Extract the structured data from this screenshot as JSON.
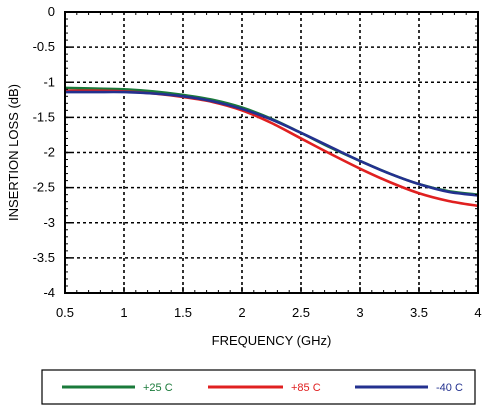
{
  "chart_data": {
    "type": "line",
    "title": "",
    "xlabel": "FREQUENCY (GHz)",
    "ylabel": "INSERTION LOSS (dB)",
    "xlim": [
      0.5,
      4
    ],
    "ylim": [
      -4,
      0
    ],
    "x_ticks": [
      0.5,
      1,
      1.5,
      2,
      2.5,
      3,
      3.5,
      4
    ],
    "x_tick_labels": [
      "0.5",
      "1",
      "1.5",
      "2",
      "2.5",
      "3",
      "3.5",
      "4"
    ],
    "y_ticks": [
      0,
      -0.5,
      -1,
      -1.5,
      -2,
      -2.5,
      -3,
      -3.5,
      -4
    ],
    "y_tick_labels": [
      "0",
      "-0.5",
      "-1",
      "-1.5",
      "-2",
      "-2.5",
      "-3",
      "-3.5",
      "-4"
    ],
    "grid": true,
    "grid_style": "dotted",
    "legend_position": "bottom",
    "x": [
      0.5,
      0.75,
      1.0,
      1.25,
      1.5,
      1.75,
      2.0,
      2.25,
      2.5,
      2.75,
      3.0,
      3.25,
      3.5,
      3.75,
      4.0
    ],
    "series": [
      {
        "name": "+25 C",
        "color": "#1a7a3a",
        "values": [
          -1.08,
          -1.09,
          -1.1,
          -1.13,
          -1.18,
          -1.25,
          -1.36,
          -1.52,
          -1.72,
          -1.93,
          -2.12,
          -2.3,
          -2.45,
          -2.55,
          -2.6
        ]
      },
      {
        "name": "+85 C",
        "color": "#e02020",
        "values": [
          -1.12,
          -1.12,
          -1.13,
          -1.16,
          -1.21,
          -1.28,
          -1.4,
          -1.58,
          -1.8,
          -2.02,
          -2.23,
          -2.42,
          -2.58,
          -2.69,
          -2.76
        ]
      },
      {
        "name": "-40 C",
        "color": "#23318f",
        "values": [
          -1.14,
          -1.14,
          -1.14,
          -1.16,
          -1.2,
          -1.27,
          -1.38,
          -1.53,
          -1.72,
          -1.92,
          -2.12,
          -2.3,
          -2.45,
          -2.56,
          -2.61
        ]
      }
    ]
  }
}
